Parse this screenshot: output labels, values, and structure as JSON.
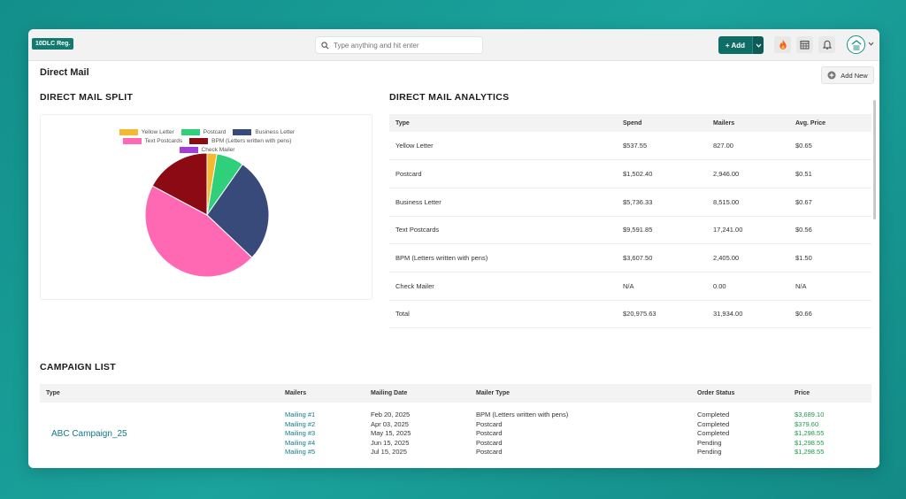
{
  "topbar": {
    "badge": "10DLC Reg.",
    "search_placeholder": "Type anything and hit enter",
    "add_label": "+ Add"
  },
  "page": {
    "title": "Direct Mail",
    "add_new_label": "Add New"
  },
  "split": {
    "title": "DIRECT MAIL SPLIT"
  },
  "chart_data": {
    "type": "pie",
    "title": "DIRECT MAIL SPLIT",
    "legend": [
      "Yellow Letter",
      "Postcard",
      "Business Letter",
      "Text Postcards",
      "BPM (Letters written with pens)",
      "Check Mailer"
    ],
    "colors": [
      "#f5b82e",
      "#2fd07a",
      "#384a7a",
      "#ff69b4",
      "#8b0a14",
      "#a13fd6"
    ],
    "values": [
      537.55,
      1502.4,
      5736.33,
      9591.85,
      3607.5,
      0
    ],
    "legend_position": "top"
  },
  "analytics": {
    "title": "DIRECT MAIL ANALYTICS",
    "columns": [
      "Type",
      "Spend",
      "Mailers",
      "Avg. Price"
    ],
    "rows": [
      [
        "Yellow Letter",
        "$537.55",
        "827.00",
        "$0.65"
      ],
      [
        "Postcard",
        "$1,502.40",
        "2,946.00",
        "$0.51"
      ],
      [
        "Business Letter",
        "$5,736.33",
        "8,515.00",
        "$0.67"
      ],
      [
        "Text Postcards",
        "$9,591.85",
        "17,241.00",
        "$0.56"
      ],
      [
        "BPM (Letters written with pens)",
        "$3,607.50",
        "2,405.00",
        "$1.50"
      ],
      [
        "Check Mailer",
        "N/A",
        "0.00",
        "N/A"
      ],
      [
        "Total",
        "$20,975.63",
        "31,934.00",
        "$0.66"
      ]
    ]
  },
  "campaigns": {
    "title": "CAMPAIGN LIST",
    "columns": [
      "Type",
      "Mailers",
      "Mailing Date",
      "Mailer Type",
      "Order Status",
      "Price"
    ],
    "items": [
      {
        "name": "ABC Campaign_25",
        "mailers": [
          "Mailing #1",
          "Mailing #2",
          "Mailing #3",
          "Mailing #4",
          "Mailing #5"
        ],
        "dates": [
          "Feb 20, 2025",
          "Apr 03, 2025",
          "May 15, 2025",
          "Jun 15, 2025",
          "Jul 15, 2025"
        ],
        "types": [
          "BPM (Letters written with pens)",
          "Postcard",
          "Postcard",
          "Postcard",
          "Postcard"
        ],
        "statuses": [
          "Completed",
          "Completed",
          "Completed",
          "Pending",
          "Pending"
        ],
        "prices": [
          "$3,689.10",
          "$379.60",
          "$1,298.55",
          "$1,298.55",
          "$1,298.55"
        ]
      }
    ]
  }
}
